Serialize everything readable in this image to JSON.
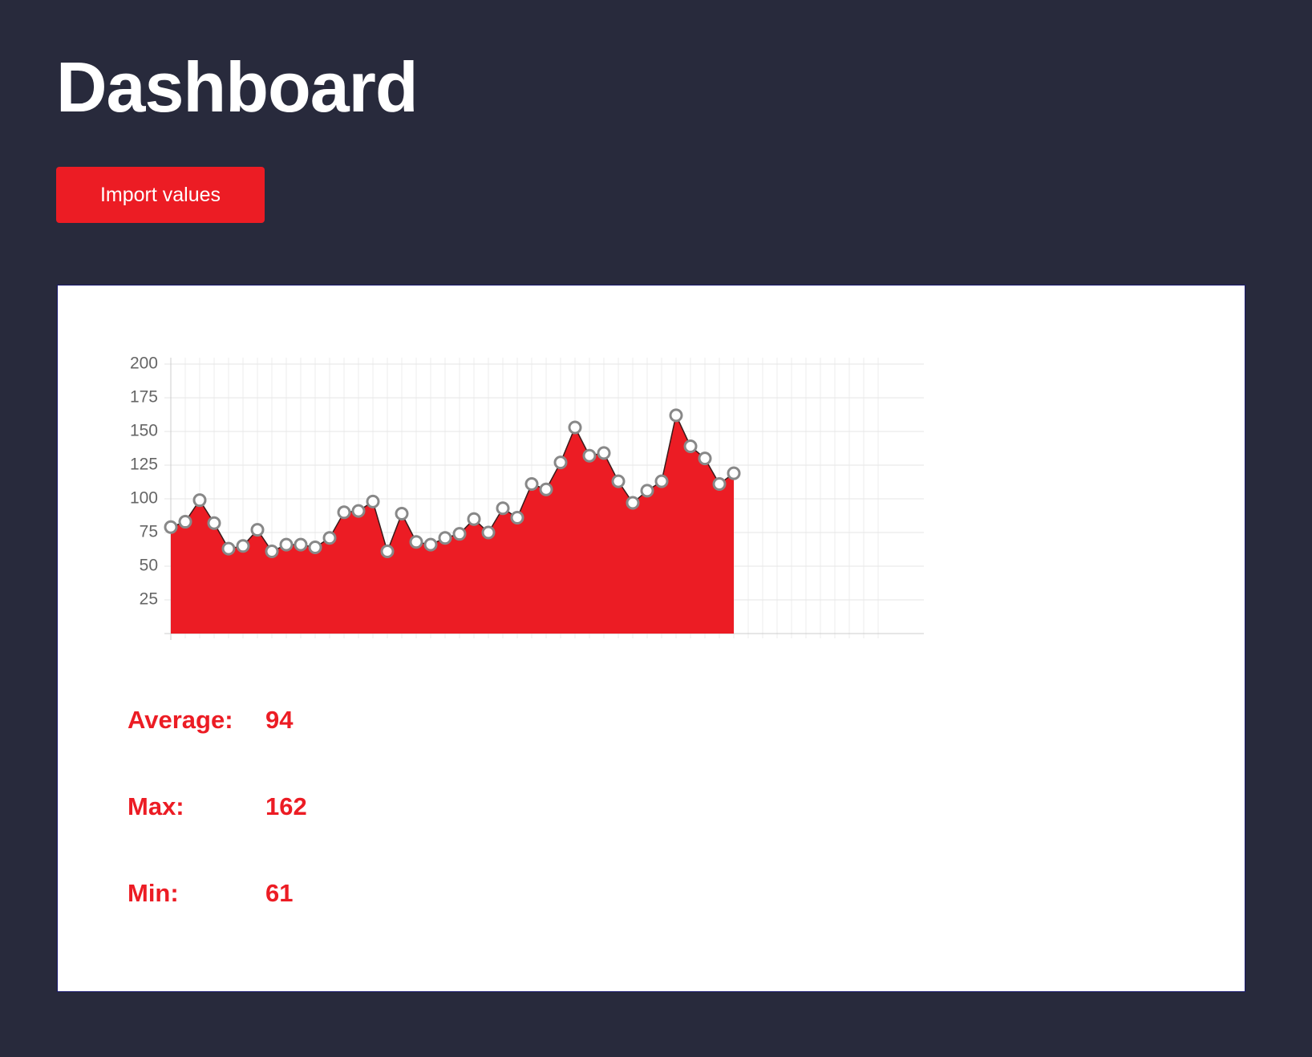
{
  "header": {
    "title": "Dashboard",
    "button": "Import values"
  },
  "chart_data": {
    "type": "area",
    "categories": [
      null,
      null,
      null,
      null,
      null,
      null,
      null,
      null,
      null,
      null,
      null,
      null,
      null,
      null,
      null,
      null,
      null,
      null,
      null,
      null,
      null,
      null,
      null,
      null,
      null,
      null,
      null,
      null,
      null,
      null,
      null,
      null,
      null,
      null,
      null,
      null,
      null,
      null,
      null,
      null,
      null,
      null,
      null,
      null,
      null,
      null,
      null,
      null,
      null,
      null
    ],
    "values": [
      79,
      83,
      99,
      82,
      63,
      65,
      77,
      61,
      66,
      66,
      64,
      71,
      90,
      91,
      98,
      61,
      89,
      68,
      66,
      71,
      74,
      85,
      75,
      93,
      86,
      111,
      107,
      127,
      153,
      132,
      134,
      113,
      97,
      106,
      113,
      162,
      139,
      130,
      111,
      119,
      null,
      null,
      null,
      null,
      null,
      null,
      null,
      null,
      null,
      null
    ],
    "color": "#ec1c24",
    "ylim": [
      0,
      200
    ],
    "yticks": [
      25,
      50,
      75,
      100,
      125,
      150,
      175,
      200
    ],
    "grid": true
  },
  "stats": [
    {
      "label": "Average:",
      "value": 94
    },
    {
      "label": "Max:",
      "value": 162
    },
    {
      "label": "Min:",
      "value": 61
    }
  ]
}
